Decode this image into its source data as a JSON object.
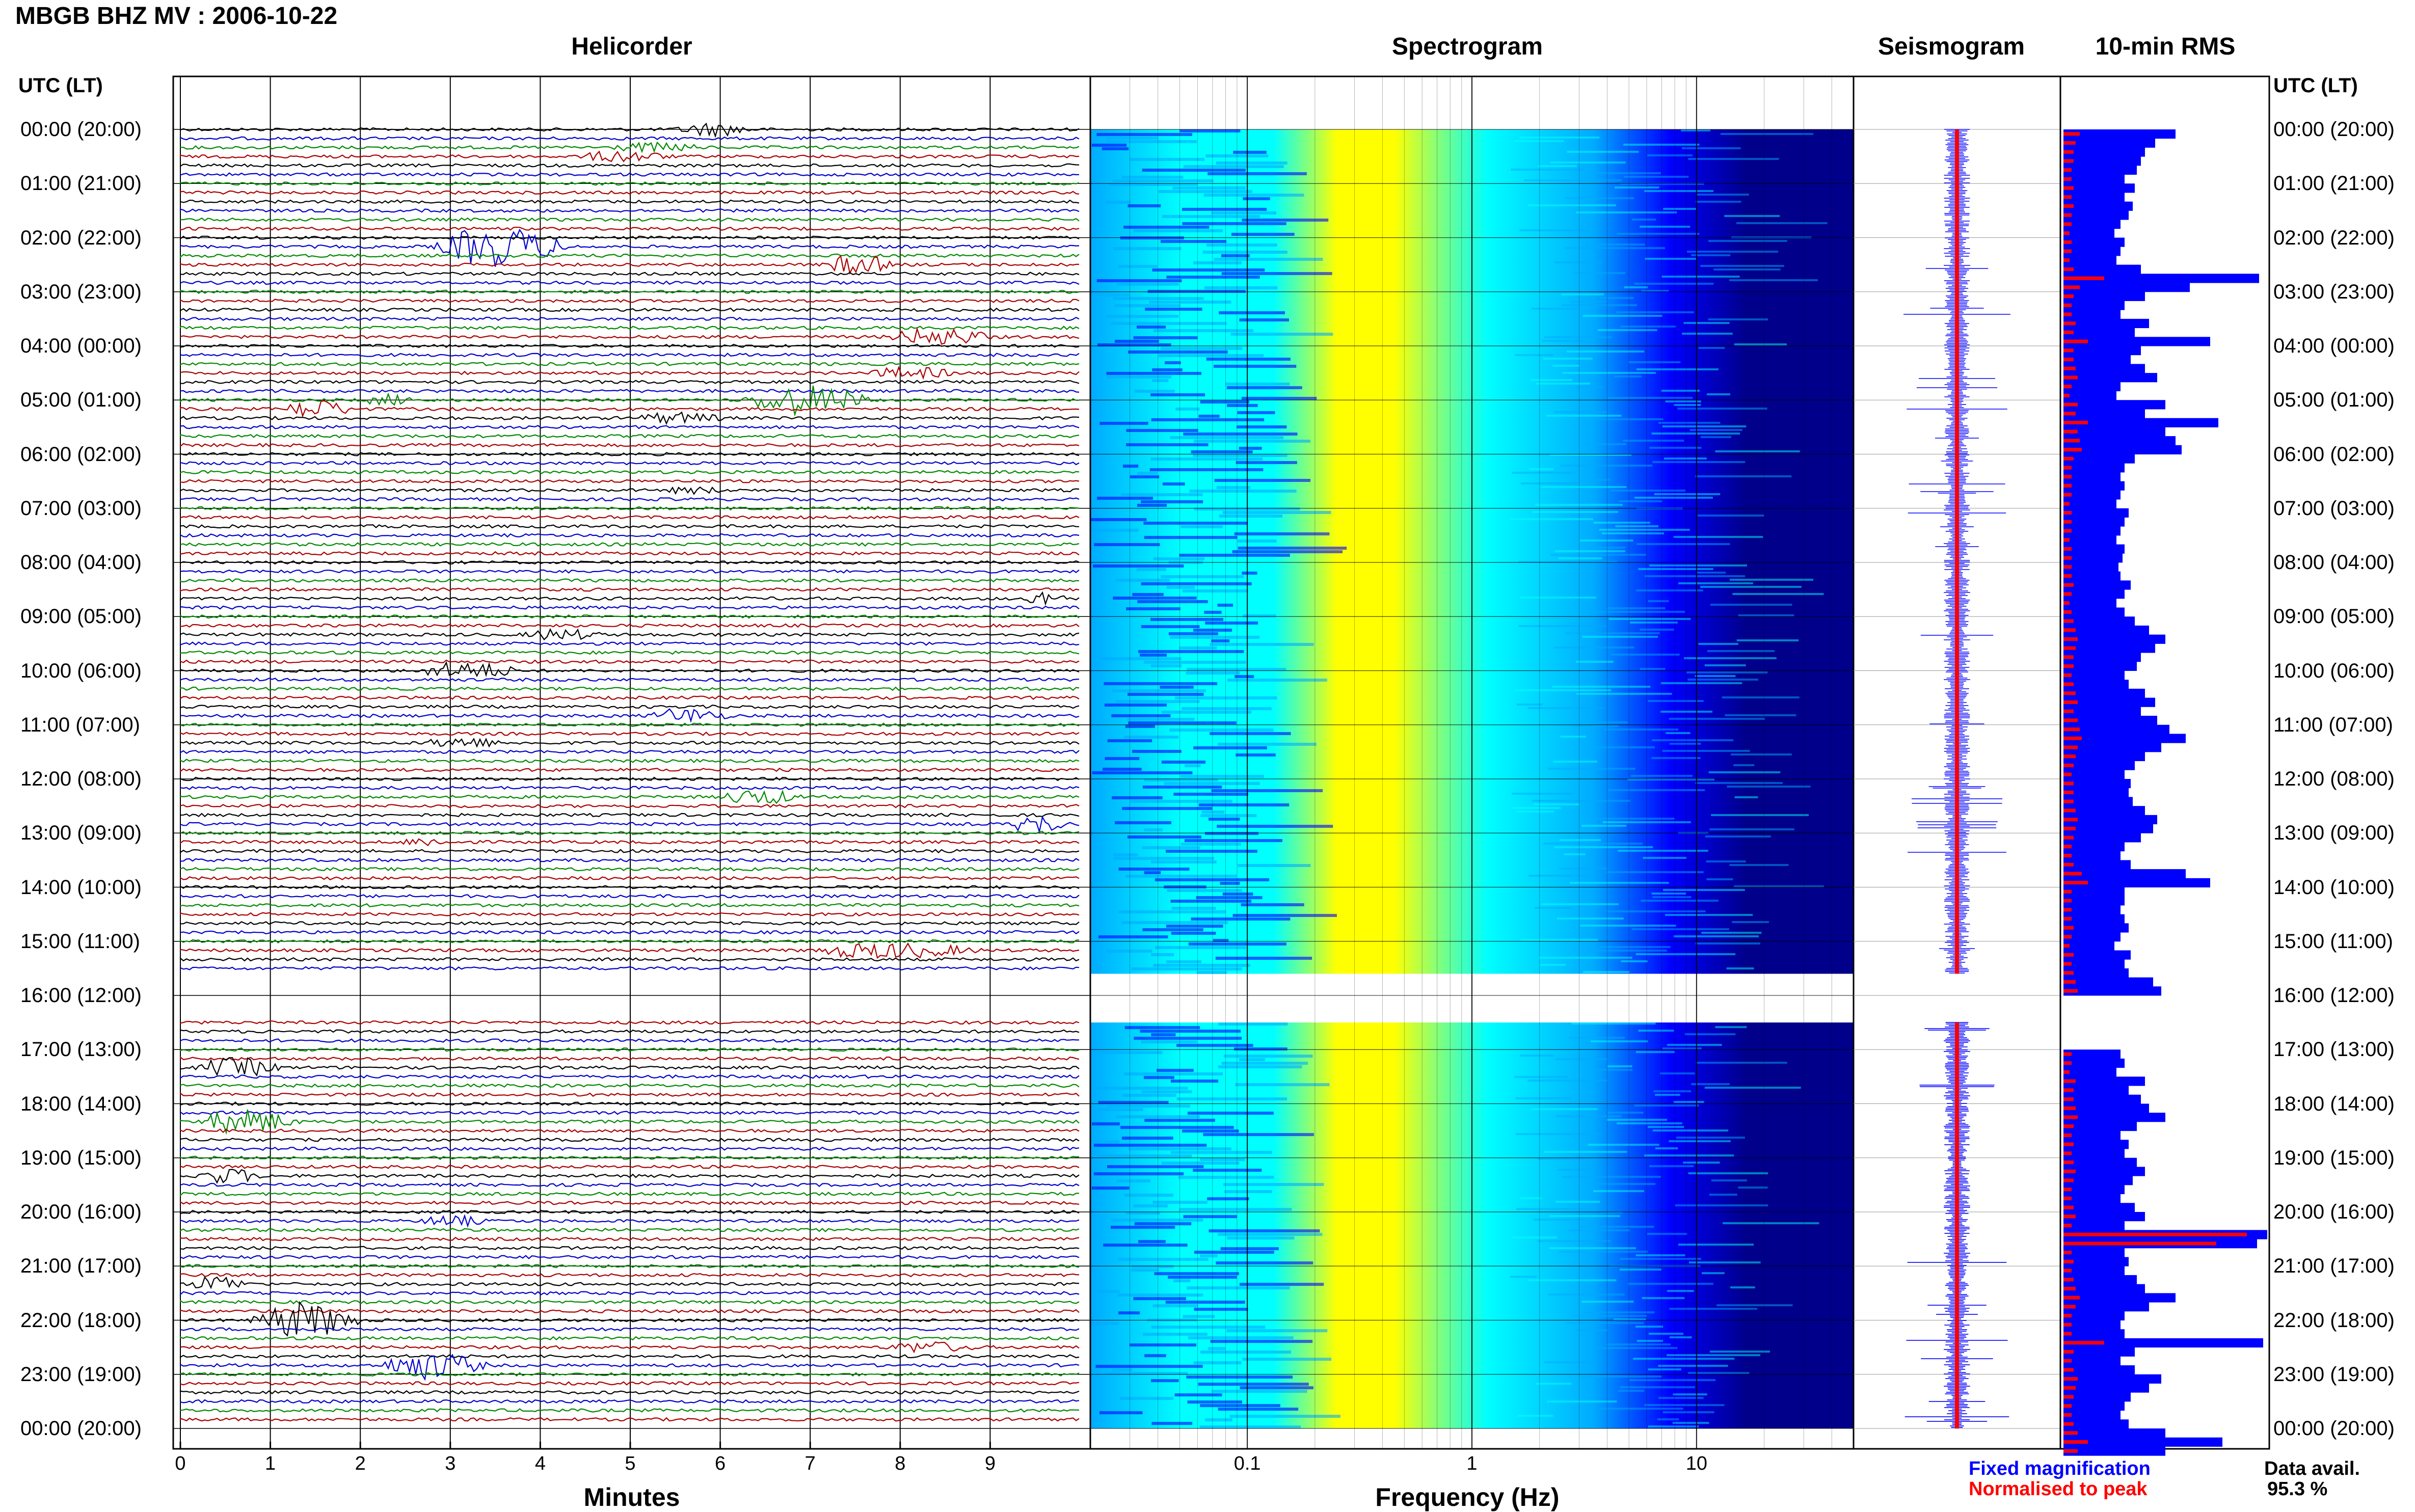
{
  "header": {
    "title": "MBGB BHZ MV : 2006-10-22"
  },
  "panels": {
    "helicorder": "Helicorder",
    "spectrogram": "Spectrogram",
    "seismogram": "Seismogram",
    "rms": "10-min RMS"
  },
  "time_axis_label": "UTC (LT)",
  "legend": {
    "fixed": "Fixed magnification",
    "normalised": "Normalised to peak",
    "avail_label": "Data avail.",
    "avail_value": "95.3 %"
  },
  "colors": {
    "fixed": "#0000ff",
    "normalised": "#ff0000",
    "trace_cycle": [
      "#000000",
      "#0000cc",
      "#008800",
      "#aa0000"
    ]
  },
  "chart_data": [
    {
      "type": "line",
      "title": "Helicorder",
      "xlabel": "Minutes",
      "x_ticks": [
        "0",
        "1",
        "2",
        "3",
        "4",
        "5",
        "6",
        "7",
        "8",
        "9"
      ],
      "xlim": [
        0,
        10
      ],
      "y_ticks": [
        "00:00 (20:00)",
        "01:00 (21:00)",
        "02:00 (22:00)",
        "03:00 (23:00)",
        "04:00 (00:00)",
        "05:00 (01:00)",
        "06:00 (02:00)",
        "07:00 (03:00)",
        "08:00 (04:00)",
        "09:00 (05:00)",
        "10:00 (06:00)",
        "11:00 (07:00)",
        "12:00 (08:00)",
        "13:00 (09:00)",
        "14:00 (10:00)",
        "15:00 (11:00)",
        "16:00 (12:00)",
        "17:00 (13:00)",
        "18:00 (14:00)",
        "19:00 (15:00)",
        "20:00 (16:00)",
        "21:00 (17:00)",
        "22:00 (18:00)",
        "23:00 (19:00)",
        "00:00 (20:00)"
      ],
      "data_gap_hours": [
        15.6,
        16.5
      ]
    },
    {
      "type": "heatmap",
      "title": "Spectrogram",
      "xlabel": "Frequency (Hz)",
      "x_scale": "log",
      "x_ticks": [
        "0.1",
        "1",
        "10"
      ],
      "xlim": [
        0.02,
        50
      ],
      "peak_band_hz": [
        0.25,
        0.45
      ],
      "colormap": [
        "#00008b",
        "#0000ff",
        "#00aaff",
        "#00ffff",
        "#7fff7f",
        "#ffff00"
      ]
    },
    {
      "type": "line",
      "title": "Seismogram",
      "series": [
        {
          "name": "Fixed magnification",
          "color": "#0000ff"
        },
        {
          "name": "Normalised to peak",
          "color": "#ff0000"
        }
      ]
    },
    {
      "type": "bar",
      "title": "10-min RMS",
      "orientation": "horizontal",
      "bin_minutes": 10,
      "series": [
        {
          "name": "Fixed magnification",
          "color": "#0000ff"
        },
        {
          "name": "Normalised to peak",
          "color": "#ff0000"
        }
      ],
      "fixed_magnification": [
        0.55,
        0.45,
        0.4,
        0.38,
        0.36,
        0.3,
        0.35,
        0.3,
        0.34,
        0.32,
        0.28,
        0.25,
        0.3,
        0.28,
        0.26,
        0.38,
        0.96,
        0.62,
        0.4,
        0.3,
        0.28,
        0.42,
        0.35,
        0.72,
        0.38,
        0.33,
        0.4,
        0.46,
        0.28,
        0.26,
        0.5,
        0.4,
        0.76,
        0.5,
        0.55,
        0.58,
        0.35,
        0.3,
        0.28,
        0.3,
        0.28,
        0.26,
        0.32,
        0.3,
        0.28,
        0.26,
        0.3,
        0.29,
        0.27,
        0.28,
        0.33,
        0.3,
        0.26,
        0.3,
        0.35,
        0.42,
        0.5,
        0.45,
        0.38,
        0.36,
        0.3,
        0.32,
        0.4,
        0.45,
        0.38,
        0.46,
        0.52,
        0.6,
        0.48,
        0.4,
        0.35,
        0.3,
        0.33,
        0.32,
        0.34,
        0.4,
        0.46,
        0.44,
        0.38,
        0.3,
        0.28,
        0.33,
        0.6,
        0.72,
        0.3,
        0.3,
        0.28,
        0.3,
        0.32,
        0.28,
        0.25,
        0.33,
        0.3,
        0.32,
        0.44,
        0.48,
        null,
        null,
        null,
        null,
        null,
        null,
        0.28,
        0.3,
        0.26,
        0.4,
        0.32,
        0.38,
        0.42,
        0.5,
        0.36,
        0.28,
        0.32,
        0.3,
        0.36,
        0.4,
        0.34,
        0.3,
        0.28,
        0.35,
        0.4,
        0.3,
        1.0,
        0.95,
        0.3,
        0.32,
        0.3,
        0.36,
        0.4,
        0.55,
        0.42,
        0.3,
        0.28,
        0.3,
        0.98,
        0.35,
        0.28,
        0.35,
        0.48,
        0.42,
        0.33,
        0.3,
        0.28,
        0.32,
        0.5,
        0.78,
        0.5
      ],
      "normalised_to_peak": [
        0.08,
        0.06,
        0.05,
        0.05,
        0.04,
        0.04,
        0.05,
        0.04,
        0.05,
        0.04,
        0.04,
        0.03,
        0.04,
        0.04,
        0.03,
        0.05,
        0.2,
        0.08,
        0.05,
        0.04,
        0.04,
        0.06,
        0.05,
        0.12,
        0.05,
        0.05,
        0.06,
        0.07,
        0.04,
        0.03,
        0.07,
        0.06,
        0.12,
        0.07,
        0.08,
        0.09,
        0.05,
        0.04,
        0.04,
        0.04,
        0.04,
        0.03,
        0.04,
        0.04,
        0.04,
        0.03,
        0.04,
        0.04,
        0.04,
        0.04,
        0.05,
        0.04,
        0.03,
        0.04,
        0.05,
        0.06,
        0.07,
        0.06,
        0.05,
        0.05,
        0.04,
        0.05,
        0.06,
        0.07,
        0.05,
        0.07,
        0.08,
        0.09,
        0.07,
        0.06,
        0.05,
        0.04,
        0.05,
        0.05,
        0.05,
        0.06,
        0.07,
        0.06,
        0.05,
        0.04,
        0.04,
        0.05,
        0.09,
        0.12,
        0.04,
        0.04,
        0.04,
        0.04,
        0.05,
        0.04,
        0.03,
        0.05,
        0.04,
        0.05,
        0.06,
        0.07,
        null,
        null,
        null,
        null,
        null,
        null,
        0.04,
        0.04,
        0.03,
        0.06,
        0.05,
        0.05,
        0.06,
        0.07,
        0.05,
        0.04,
        0.05,
        0.04,
        0.05,
        0.06,
        0.05,
        0.04,
        0.04,
        0.05,
        0.06,
        0.04,
        0.9,
        0.75,
        0.04,
        0.05,
        0.04,
        0.05,
        0.06,
        0.08,
        0.06,
        0.04,
        0.04,
        0.04,
        0.2,
        0.05,
        0.04,
        0.05,
        0.07,
        0.06,
        0.05,
        0.04,
        0.04,
        0.05,
        0.07,
        0.12,
        0.07
      ]
    }
  ]
}
